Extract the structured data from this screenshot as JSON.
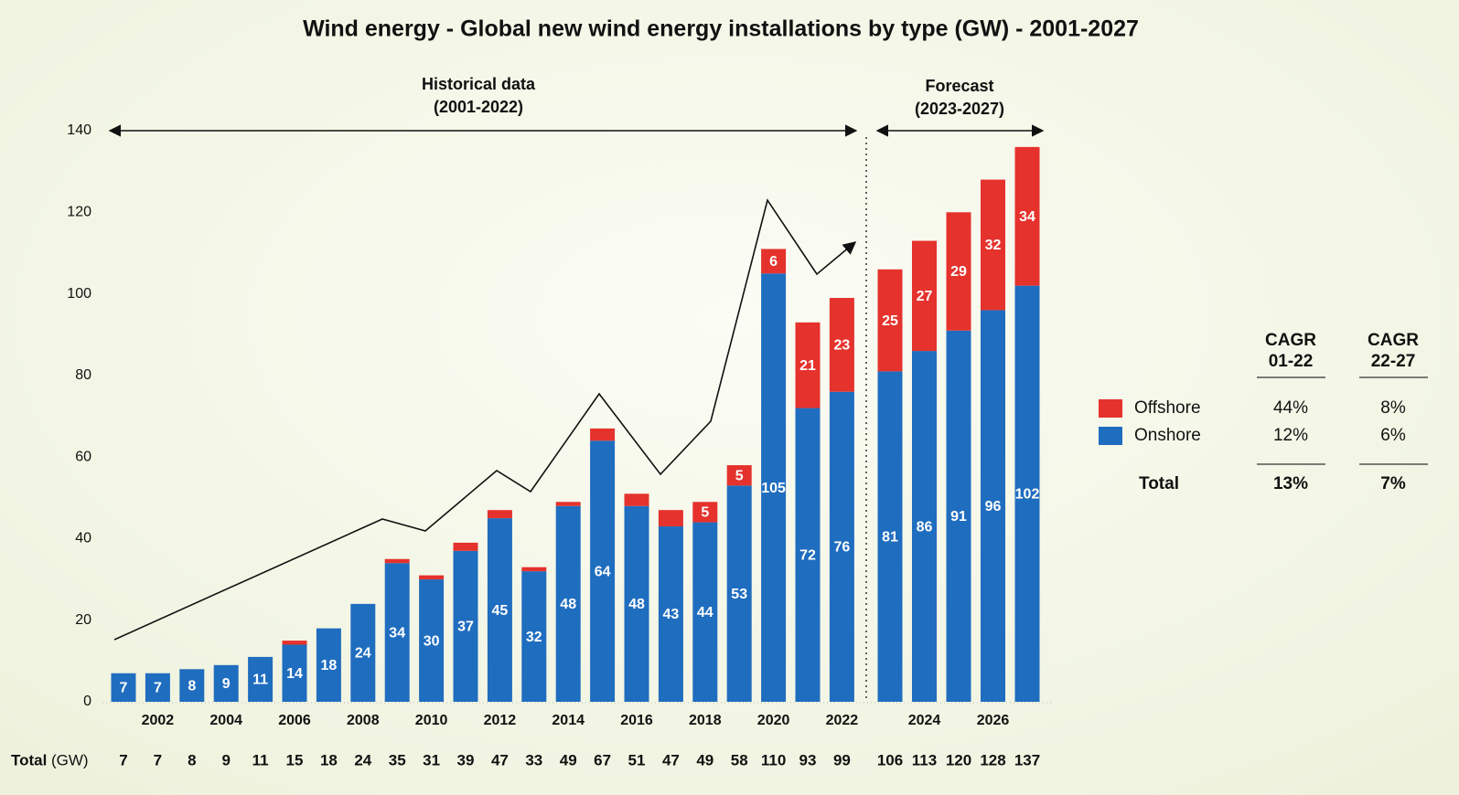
{
  "chart_data": {
    "type": "stacked_bar",
    "title": "Wind energy - Global new wind energy installations by type (GW) - 2001-2027",
    "annotations": {
      "historical": [
        "Historical data",
        "(2001-2022)"
      ],
      "forecast": [
        "Forecast",
        "(2023-2027)"
      ]
    },
    "categories": [
      null,
      "2002",
      null,
      "2004",
      null,
      "2006",
      null,
      "2008",
      null,
      "2010",
      null,
      "2012",
      null,
      "2014",
      null,
      "2016",
      null,
      "2018",
      null,
      "2020",
      null,
      "2022",
      null,
      "2024",
      null,
      "2026",
      null
    ],
    "series": [
      {
        "name": "Onshore",
        "color": "#1f6dbf",
        "values": [
          7,
          7,
          8,
          9,
          11,
          14,
          18,
          24,
          34,
          30,
          37,
          45,
          32,
          48,
          64,
          48,
          43,
          44,
          53,
          105,
          72,
          76,
          81,
          86,
          91,
          96,
          102
        ]
      },
      {
        "name": "Offshore",
        "color": "#e5322d",
        "values": [
          0,
          0,
          0,
          0,
          0,
          1,
          0,
          0,
          1,
          1,
          2,
          2,
          1,
          1,
          3,
          3,
          4,
          5,
          5,
          6,
          21,
          23,
          25,
          27,
          29,
          32,
          34
        ],
        "value_labels": [
          null,
          null,
          null,
          null,
          null,
          null,
          null,
          null,
          null,
          null,
          null,
          null,
          null,
          null,
          null,
          null,
          null,
          "5",
          "5",
          "6",
          "21",
          "23",
          "25",
          "27",
          "29",
          "32",
          "34"
        ]
      }
    ],
    "totals_label": "Total",
    "totals_unit": "(GW)",
    "totals": [
      7,
      7,
      8,
      9,
      11,
      15,
      18,
      24,
      35,
      31,
      39,
      47,
      33,
      49,
      67,
      51,
      47,
      49,
      58,
      110,
      93,
      99,
      106,
      113,
      120,
      128,
      137
    ],
    "ylim": [
      0,
      140
    ],
    "yticks": [
      0,
      20,
      40,
      60,
      80,
      100,
      120,
      140
    ],
    "grid": false,
    "cagr_table": {
      "columns": [
        [
          "CAGR",
          "01-22"
        ],
        [
          "CAGR",
          "22-27"
        ]
      ],
      "rows": [
        {
          "label": "Offshore",
          "values": [
            "44%",
            "8%"
          ]
        },
        {
          "label": "Onshore",
          "values": [
            "12%",
            "6%"
          ]
        },
        {
          "label": "Total",
          "values": [
            "13%",
            "7%"
          ]
        }
      ]
    }
  }
}
